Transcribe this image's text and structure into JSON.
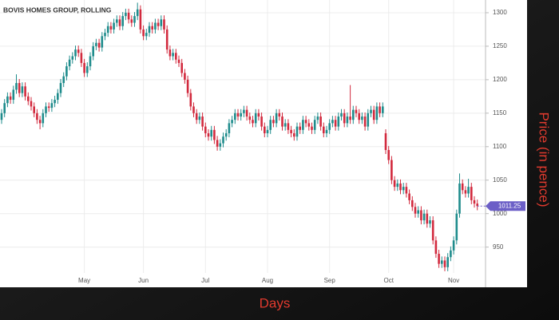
{
  "chart_data": {
    "type": "candlestick",
    "title": "BOVIS HOMES GROUP, ROLLING",
    "x_label": "Days",
    "y_label": "Price (in pence)",
    "categories": [
      null,
      null,
      null,
      null,
      null,
      null,
      null,
      null,
      null,
      null,
      null,
      null,
      null,
      null,
      null,
      null,
      null,
      null,
      null,
      null,
      null,
      null,
      null,
      null,
      null,
      null,
      null,
      null,
      "May",
      null,
      null,
      null,
      null,
      null,
      null,
      null,
      null,
      null,
      null,
      null,
      null,
      null,
      null,
      null,
      null,
      null,
      null,
      null,
      "Jun",
      null,
      null,
      null,
      null,
      null,
      null,
      null,
      null,
      null,
      null,
      null,
      null,
      null,
      null,
      null,
      null,
      null,
      null,
      null,
      null,
      "Jul",
      null,
      null,
      null,
      null,
      null,
      null,
      null,
      null,
      null,
      null,
      null,
      null,
      null,
      null,
      null,
      null,
      null,
      null,
      null,
      null,
      "Aug",
      null,
      null,
      null,
      null,
      null,
      null,
      null,
      null,
      null,
      null,
      null,
      null,
      null,
      null,
      null,
      null,
      null,
      null,
      null,
      null,
      "Sep",
      null,
      null,
      null,
      null,
      null,
      null,
      null,
      null,
      null,
      null,
      null,
      null,
      null,
      null,
      null,
      null,
      null,
      null,
      null,
      "Oct",
      null,
      null,
      null,
      null,
      null,
      null,
      null,
      null,
      null,
      null,
      null,
      null,
      null,
      null,
      null,
      null,
      null,
      null,
      null,
      null,
      null,
      "Nov",
      null,
      null,
      null,
      null,
      null,
      null,
      null,
      null
    ],
    "open": [
      1140,
      1150,
      1165,
      1175,
      1170,
      1185,
      1195,
      1180,
      1190,
      1175,
      1168,
      1160,
      1150,
      1140,
      1135,
      1150,
      1160,
      1158,
      1165,
      1170,
      1180,
      1195,
      1205,
      1220,
      1230,
      1235,
      1245,
      1240,
      1225,
      1210,
      1220,
      1235,
      1250,
      1255,
      1248,
      1265,
      1270,
      1280,
      1275,
      1285,
      1290,
      1280,
      1295,
      1300,
      1290,
      1285,
      1295,
      1305,
      1275,
      1265,
      1270,
      1280,
      1275,
      1285,
      1280,
      1290,
      1275,
      1245,
      1235,
      1240,
      1230,
      1225,
      1210,
      1200,
      1180,
      1160,
      1150,
      1140,
      1145,
      1130,
      1120,
      1115,
      1125,
      1110,
      1100,
      1105,
      1115,
      1120,
      1135,
      1140,
      1150,
      1145,
      1150,
      1155,
      1145,
      1140,
      1135,
      1150,
      1145,
      1130,
      1120,
      1125,
      1140,
      1135,
      1150,
      1145,
      1130,
      1135,
      1125,
      1120,
      1115,
      1130,
      1125,
      1140,
      1135,
      1130,
      1125,
      1140,
      1145,
      1130,
      1120,
      1125,
      1135,
      1140,
      1130,
      1145,
      1150,
      1135,
      1145,
      1140,
      1155,
      1150,
      1140,
      1145,
      1130,
      1150,
      1155,
      1140,
      1160,
      1150,
      1120,
      1095,
      1080,
      1050,
      1040,
      1045,
      1035,
      1040,
      1030,
      1020,
      1010,
      1000,
      1005,
      990,
      1000,
      985,
      990,
      960,
      940,
      925,
      930,
      920,
      935,
      945,
      960,
      1000,
      1045,
      1035,
      1030,
      1040,
      1020,
      1015
    ],
    "high": [
      1156,
      1171,
      1181,
      1181,
      1191,
      1208,
      1201,
      1196,
      1196,
      1181,
      1174,
      1166,
      1156,
      1146,
      1156,
      1166,
      1166,
      1171,
      1176,
      1186,
      1201,
      1211,
      1226,
      1236,
      1241,
      1251,
      1251,
      1246,
      1231,
      1226,
      1241,
      1256,
      1261,
      1261,
      1271,
      1276,
      1286,
      1286,
      1291,
      1296,
      1296,
      1301,
      1306,
      1306,
      1296,
      1301,
      1315,
      1311,
      1281,
      1276,
      1286,
      1286,
      1291,
      1291,
      1296,
      1296,
      1281,
      1251,
      1246,
      1246,
      1236,
      1231,
      1216,
      1206,
      1186,
      1166,
      1156,
      1151,
      1151,
      1136,
      1126,
      1131,
      1131,
      1116,
      1111,
      1121,
      1126,
      1141,
      1146,
      1156,
      1156,
      1156,
      1161,
      1161,
      1151,
      1146,
      1156,
      1156,
      1151,
      1136,
      1131,
      1146,
      1146,
      1156,
      1156,
      1151,
      1141,
      1141,
      1131,
      1126,
      1136,
      1136,
      1146,
      1146,
      1141,
      1136,
      1146,
      1151,
      1151,
      1136,
      1131,
      1141,
      1146,
      1146,
      1151,
      1156,
      1156,
      1151,
      1192,
      1161,
      1161,
      1156,
      1151,
      1151,
      1156,
      1161,
      1161,
      1166,
      1166,
      1166,
      1126,
      1101,
      1086,
      1056,
      1051,
      1051,
      1046,
      1046,
      1036,
      1026,
      1016,
      1011,
      1011,
      1006,
      1006,
      996,
      996,
      966,
      946,
      936,
      936,
      941,
      951,
      966,
      1006,
      1060,
      1051,
      1041,
      1052,
      1046,
      1026,
      1021
    ],
    "low": [
      1134,
      1144,
      1159,
      1164,
      1164,
      1179,
      1174,
      1174,
      1169,
      1162,
      1154,
      1144,
      1134,
      1126,
      1129,
      1144,
      1152,
      1152,
      1159,
      1164,
      1174,
      1189,
      1199,
      1214,
      1224,
      1229,
      1234,
      1219,
      1204,
      1204,
      1214,
      1229,
      1244,
      1242,
      1242,
      1259,
      1264,
      1269,
      1269,
      1279,
      1274,
      1274,
      1289,
      1284,
      1279,
      1279,
      1289,
      1269,
      1259,
      1259,
      1264,
      1269,
      1269,
      1274,
      1274,
      1269,
      1239,
      1229,
      1229,
      1224,
      1219,
      1204,
      1194,
      1174,
      1154,
      1144,
      1134,
      1134,
      1124,
      1114,
      1109,
      1109,
      1104,
      1094,
      1094,
      1099,
      1109,
      1114,
      1129,
      1134,
      1139,
      1139,
      1144,
      1139,
      1134,
      1129,
      1129,
      1139,
      1124,
      1114,
      1114,
      1119,
      1129,
      1129,
      1139,
      1124,
      1124,
      1119,
      1114,
      1109,
      1109,
      1119,
      1119,
      1129,
      1124,
      1119,
      1119,
      1134,
      1124,
      1114,
      1114,
      1119,
      1129,
      1124,
      1124,
      1139,
      1129,
      1129,
      1134,
      1134,
      1144,
      1134,
      1134,
      1124,
      1124,
      1144,
      1134,
      1134,
      1144,
      1144,
      1089,
      1074,
      1044,
      1034,
      1034,
      1029,
      1029,
      1024,
      1014,
      1004,
      994,
      994,
      984,
      984,
      979,
      979,
      954,
      934,
      919,
      919,
      914,
      914,
      929,
      939,
      954,
      994,
      1029,
      1024,
      1024,
      1014,
      1009,
      1005
    ],
    "close": [
      1150,
      1165,
      1175,
      1170,
      1185,
      1195,
      1180,
      1190,
      1175,
      1168,
      1160,
      1150,
      1140,
      1135,
      1150,
      1160,
      1158,
      1165,
      1170,
      1180,
      1195,
      1205,
      1220,
      1230,
      1235,
      1245,
      1240,
      1225,
      1210,
      1220,
      1235,
      1250,
      1255,
      1248,
      1265,
      1270,
      1280,
      1275,
      1285,
      1290,
      1280,
      1295,
      1300,
      1290,
      1285,
      1295,
      1305,
      1275,
      1265,
      1270,
      1280,
      1275,
      1285,
      1280,
      1290,
      1275,
      1245,
      1235,
      1240,
      1230,
      1225,
      1210,
      1200,
      1180,
      1160,
      1150,
      1140,
      1145,
      1130,
      1120,
      1115,
      1125,
      1110,
      1100,
      1105,
      1115,
      1120,
      1135,
      1140,
      1150,
      1145,
      1150,
      1155,
      1145,
      1140,
      1135,
      1150,
      1145,
      1130,
      1120,
      1125,
      1140,
      1135,
      1150,
      1145,
      1130,
      1135,
      1125,
      1120,
      1115,
      1130,
      1125,
      1140,
      1135,
      1130,
      1125,
      1140,
      1145,
      1130,
      1120,
      1125,
      1135,
      1140,
      1130,
      1145,
      1150,
      1135,
      1145,
      1140,
      1155,
      1150,
      1140,
      1145,
      1130,
      1150,
      1155,
      1140,
      1160,
      1150,
      1160,
      1095,
      1080,
      1050,
      1040,
      1045,
      1035,
      1040,
      1030,
      1020,
      1010,
      1000,
      1005,
      990,
      1000,
      985,
      990,
      960,
      940,
      925,
      930,
      920,
      935,
      945,
      960,
      1000,
      1045,
      1035,
      1030,
      1040,
      1020,
      1015,
      1011.25
    ],
    "up_color": "#1f8c8c",
    "down_color": "#d22a3e",
    "last_color": "#6c5fc7",
    "ylim": [
      890,
      1319
    ],
    "yticks": [
      950,
      1000,
      1050,
      1100,
      1150,
      1200,
      1250,
      1300
    ],
    "grid": true
  }
}
